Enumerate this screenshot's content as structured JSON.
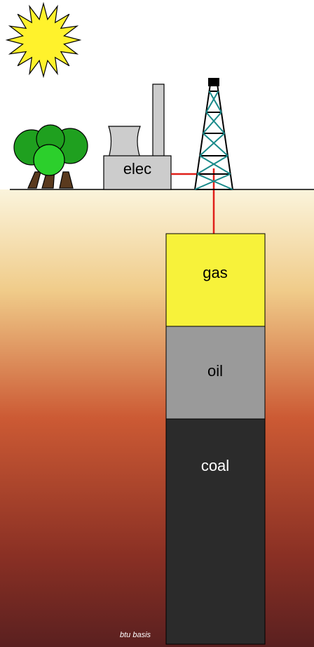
{
  "plant": {
    "label": "elec"
  },
  "layers": [
    {
      "label": "gas"
    },
    {
      "label": "oil"
    },
    {
      "label": "coal"
    }
  ],
  "note": "btu basis"
}
